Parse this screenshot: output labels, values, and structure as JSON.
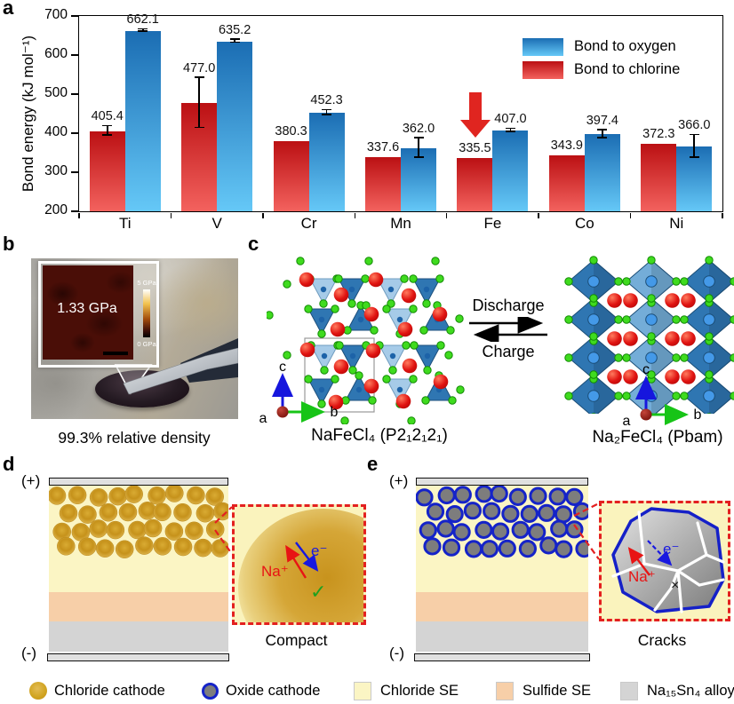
{
  "figure": {
    "panel_labels": {
      "a": "a",
      "b": "b",
      "c": "c",
      "d": "d",
      "e": "e"
    }
  },
  "chart_data": {
    "type": "bar",
    "title": "",
    "ylabel": "Bond energy (kJ mol⁻¹)",
    "ylim": [
      200,
      700
    ],
    "yticks": [
      200,
      300,
      400,
      500,
      600,
      700
    ],
    "categories": [
      "Ti",
      "V",
      "Cr",
      "Mn",
      "Fe",
      "Co",
      "Ni"
    ],
    "series": [
      {
        "name": "Bond to oxygen",
        "color_top": "#1b6db3",
        "color_bottom": "#65c8f7",
        "values": [
          662.1,
          635.2,
          452.3,
          362.0,
          407.0,
          397.4,
          366.0
        ],
        "errors": [
          3,
          4,
          6,
          25,
          4,
          10,
          29
        ]
      },
      {
        "name": "Bond to chlorine",
        "color_top": "#bb1013",
        "color_bottom": "#f3625e",
        "values": [
          405.4,
          477.0,
          380.3,
          337.6,
          335.5,
          343.9,
          372.3
        ],
        "errors": [
          12,
          64,
          0,
          0,
          0,
          0,
          0
        ]
      }
    ],
    "annotation": {
      "type": "down-arrow",
      "category": "Fe",
      "color": "#e02520"
    },
    "legend_position": "top-right",
    "grid": false
  },
  "panel_b": {
    "inset_value": "1.33 GPa",
    "colorbar_max": "5 GPa",
    "colorbar_min": "0 GPa",
    "caption": "99.3% relative density"
  },
  "panel_c": {
    "forward_label": "Discharge",
    "reverse_label": "Charge",
    "left_caption": "NaFeCl₄ (P2₁2₁2₁)",
    "right_caption": "Na₂FeCl₄ (Pbam)",
    "axis": {
      "a": "a",
      "b": "b",
      "c": "c"
    }
  },
  "panel_d": {
    "positive": "(+)",
    "negative": "(-)",
    "ion_label": "Na⁺",
    "electron_label": "e⁻",
    "status_mark": "✓",
    "caption": "Compact"
  },
  "panel_e": {
    "positive": "(+)",
    "negative": "(-)",
    "ion_label": "Na⁺",
    "electron_label": "e⁻",
    "status_mark": "×",
    "caption": "Cracks"
  },
  "colors": {
    "chloride_cathode": "#d0a31f",
    "oxide_cathode": "#7d7d7d",
    "oxide_ring": "#1523c8",
    "chloride_se": "#fbf5c4",
    "sulfide_se": "#f7cfa8",
    "alloy": "#d4d4d4",
    "inset_border": "#e32020"
  },
  "legend": {
    "items": [
      {
        "label": "Chloride cathode",
        "swatch": "circle",
        "fill": "#d0a31f"
      },
      {
        "label": "Oxide cathode",
        "swatch": "ring-circle",
        "fill": "#7d7d7d",
        "ring": "#1523c8"
      },
      {
        "label": "Chloride SE",
        "swatch": "square",
        "fill": "#fbf5c4"
      },
      {
        "label": "Sulfide SE",
        "swatch": "square",
        "fill": "#f7cfa8"
      },
      {
        "label": "Na₁₅Sn₄ alloy",
        "swatch": "square",
        "fill": "#d4d4d4"
      }
    ]
  }
}
